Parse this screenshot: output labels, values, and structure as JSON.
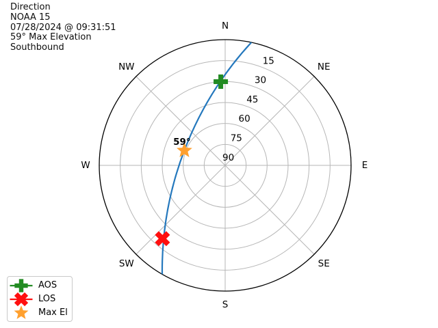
{
  "header": {
    "lines": [
      "Direction",
      "NOAA 15",
      "07/28/2024 @ 09:31:51",
      "59° Max Elevation",
      "Southbound"
    ]
  },
  "legend": {
    "items": [
      {
        "label": "AOS",
        "marker": "plus",
        "color": "#228b22",
        "has_line": true
      },
      {
        "label": "LOS",
        "marker": "x",
        "color": "#ff0f0f",
        "has_line": true
      },
      {
        "label": "Max El",
        "marker": "star",
        "color": "#ffa02f",
        "has_line": false
      }
    ]
  },
  "chart_data": {
    "type": "polar",
    "title": "Direction",
    "satellite": "NOAA 15",
    "timestamp": "07/28/2024 @ 09:31:51",
    "max_elevation_deg": 59,
    "pass_direction": "Southbound",
    "compass_labels": [
      "N",
      "NE",
      "E",
      "SE",
      "S",
      "SW",
      "W",
      "NW"
    ],
    "elevation_ticks": [
      15,
      30,
      45,
      60,
      75,
      90
    ],
    "radial_axis_note": "elevation in degrees: 90 at center, horizon 0 at outer circle",
    "tick_label_azimuth_deg": 22.5,
    "max_el_annotation": "59°",
    "grid_color": "#b6b6b6",
    "horizon_color": "#000000",
    "trajectory": {
      "color": "#2478bd",
      "start": {
        "azimuth_deg": 12,
        "elevation_deg": 0
      },
      "end": {
        "azimuth_deg": 210,
        "elevation_deg": 0
      }
    },
    "markers": [
      {
        "name": "AOS",
        "shape": "plus",
        "azimuth_deg": 357,
        "elevation_deg": 30,
        "color": "#228b22"
      },
      {
        "name": "LOS",
        "shape": "x",
        "azimuth_deg": 220.5,
        "elevation_deg": 21,
        "color": "#ff0f0f"
      },
      {
        "name": "Max El",
        "shape": "star",
        "azimuth_deg": 290,
        "elevation_deg": 59,
        "color": "#ffa02f"
      }
    ]
  }
}
